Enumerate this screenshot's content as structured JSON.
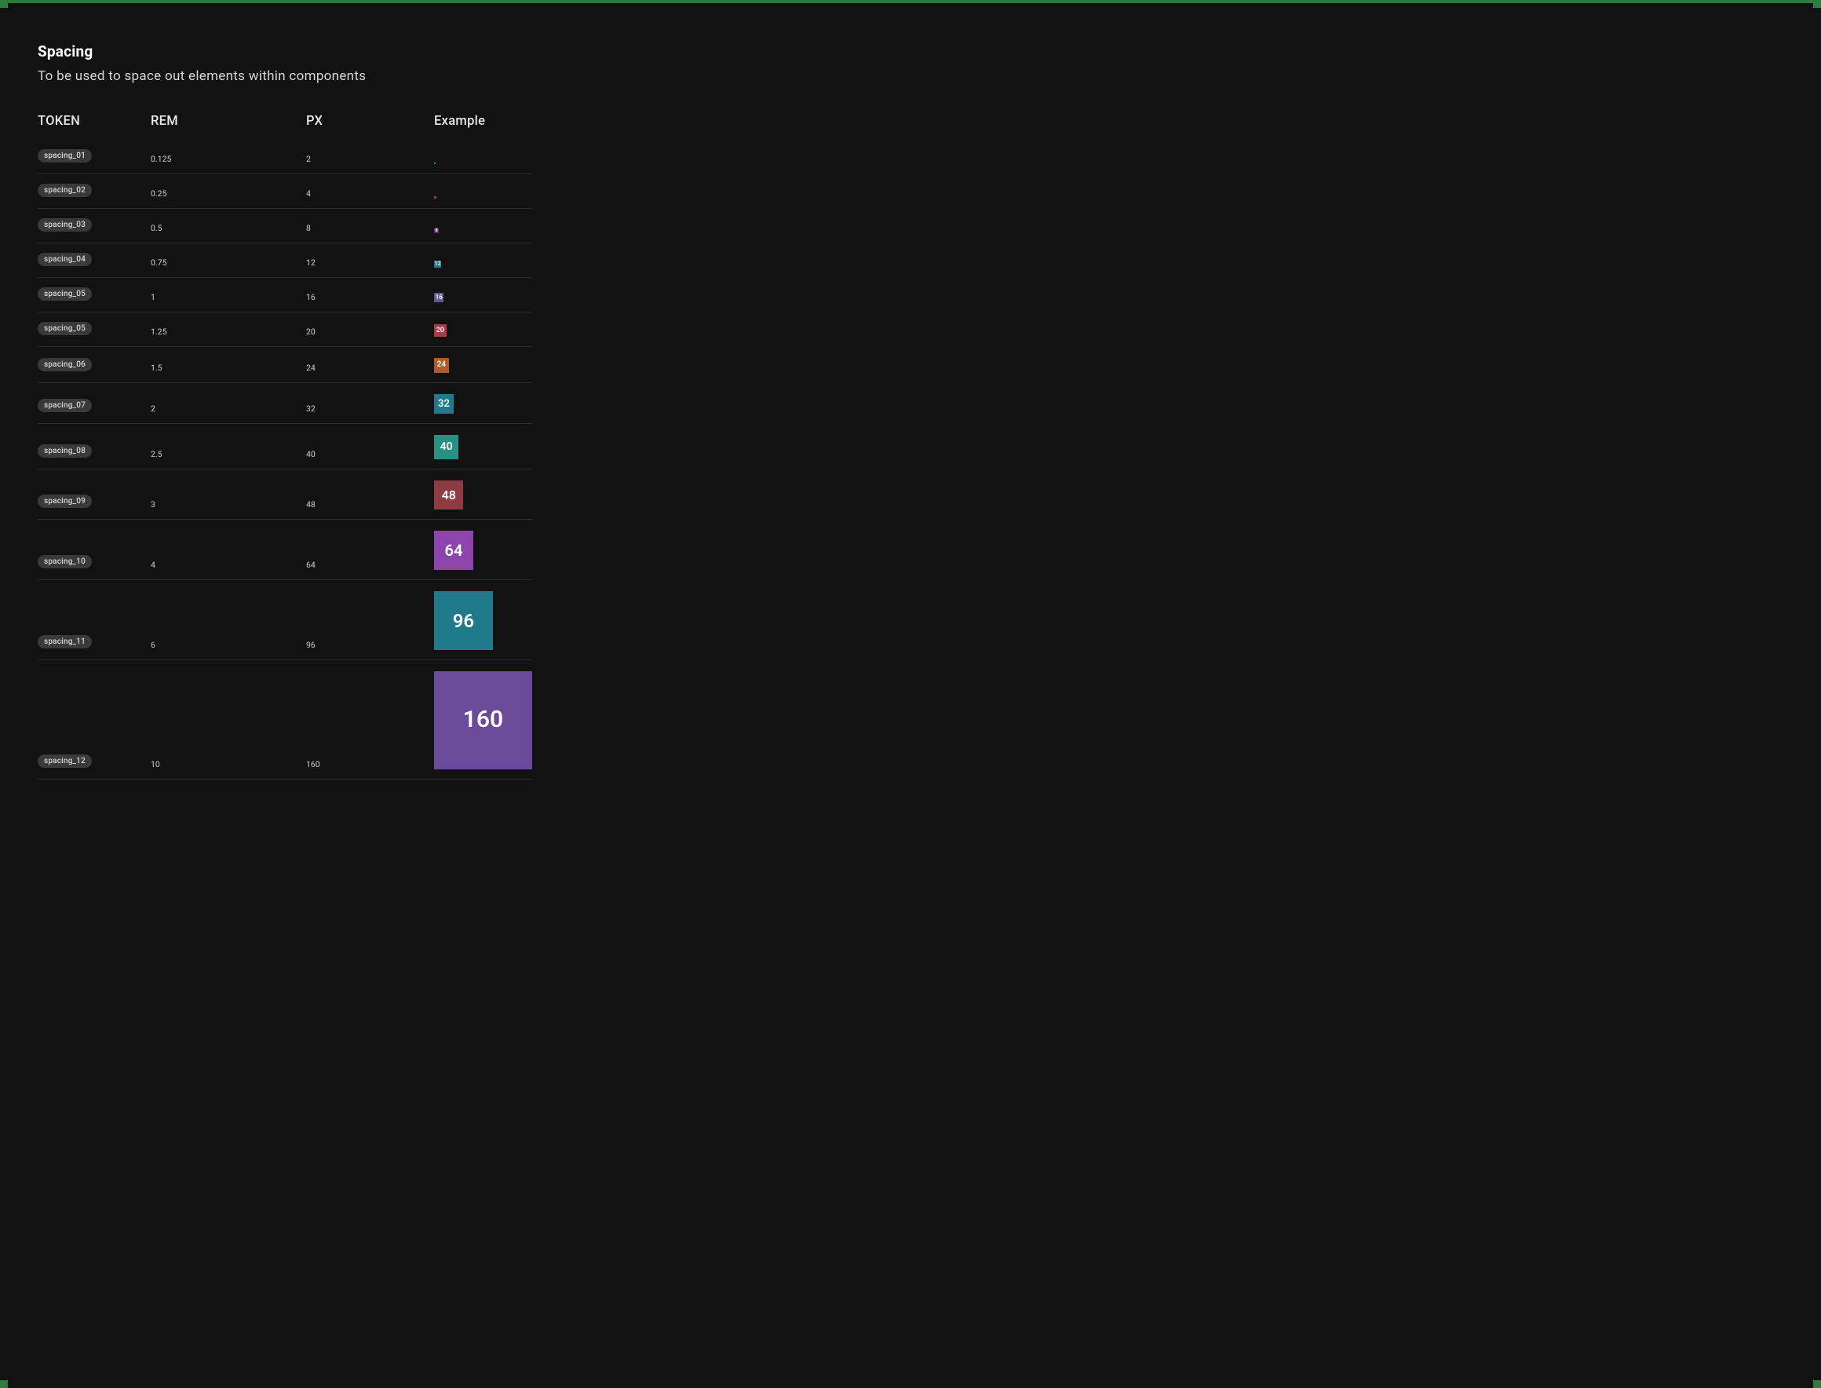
{
  "title": "Spacing",
  "subtitle": "To be used to space out elements within components",
  "columns": {
    "token": "TOKEN",
    "rem": "REM",
    "px": "PX",
    "example": "Example"
  },
  "colors": {
    "background": "#121212",
    "text": "#e8e8e8",
    "chip_bg": "#3a3a3a",
    "row_border": "#2e2e2e",
    "swatches": {
      "teal_dark": "#1f7a8c",
      "teal": "#2a8a8a",
      "teal_green": "#279183",
      "purple": "#5b2a86",
      "purple_mid": "#8e44ad",
      "violet": "#6b4a9a",
      "muted_purple": "#655a8a",
      "red": "#aa3a4a",
      "red_dark": "#8e3b46",
      "orange": "#b35a2a"
    }
  },
  "rows": [
    {
      "token": "spacing_01",
      "rem": "0.125",
      "px": "2",
      "size": 2,
      "label": "",
      "color": "#279183",
      "fontsize": 6
    },
    {
      "token": "spacing_02",
      "rem": "0.25",
      "px": "4",
      "size": 4,
      "label": "",
      "color": "#aa3a4a",
      "fontsize": 6
    },
    {
      "token": "spacing_03",
      "rem": "0.5",
      "px": "8",
      "size": 8,
      "label": "8",
      "color": "#5b2a86",
      "fontsize": 6
    },
    {
      "token": "spacing_04",
      "rem": "0.75",
      "px": "12",
      "size": 12,
      "label": "12",
      "color": "#1f7a8c",
      "fontsize": 7
    },
    {
      "token": "spacing_05",
      "rem": "1",
      "px": "16",
      "size": 16,
      "label": "16",
      "color": "#655a8a",
      "fontsize": 8
    },
    {
      "token": "spacing_05",
      "rem": "1.25",
      "px": "20",
      "size": 20,
      "label": "20",
      "color": "#aa3a4a",
      "fontsize": 9
    },
    {
      "token": "spacing_06",
      "rem": "1.5",
      "px": "24",
      "size": 24,
      "label": "24",
      "color": "#b35a2a",
      "fontsize": 10
    },
    {
      "token": "spacing_07",
      "rem": "2",
      "px": "32",
      "size": 32,
      "label": "32",
      "color": "#1f7a8c",
      "fontsize": 13
    },
    {
      "token": "spacing_08",
      "rem": "2.5",
      "px": "40",
      "size": 40,
      "label": "40",
      "color": "#279183",
      "fontsize": 14
    },
    {
      "token": "spacing_09",
      "rem": "3",
      "px": "48",
      "size": 48,
      "label": "48",
      "color": "#8e3b46",
      "fontsize": 16
    },
    {
      "token": "spacing_10",
      "rem": "4",
      "px": "64",
      "size": 64,
      "label": "64",
      "color": "#8e44ad",
      "fontsize": 20
    },
    {
      "token": "spacing_11",
      "rem": "6",
      "px": "96",
      "size": 96,
      "label": "96",
      "color": "#1f7a8c",
      "fontsize": 24
    },
    {
      "token": "spacing_12",
      "rem": "10",
      "px": "160",
      "size": 160,
      "label": "160",
      "color": "#6b4a9a",
      "fontsize": 30
    }
  ]
}
